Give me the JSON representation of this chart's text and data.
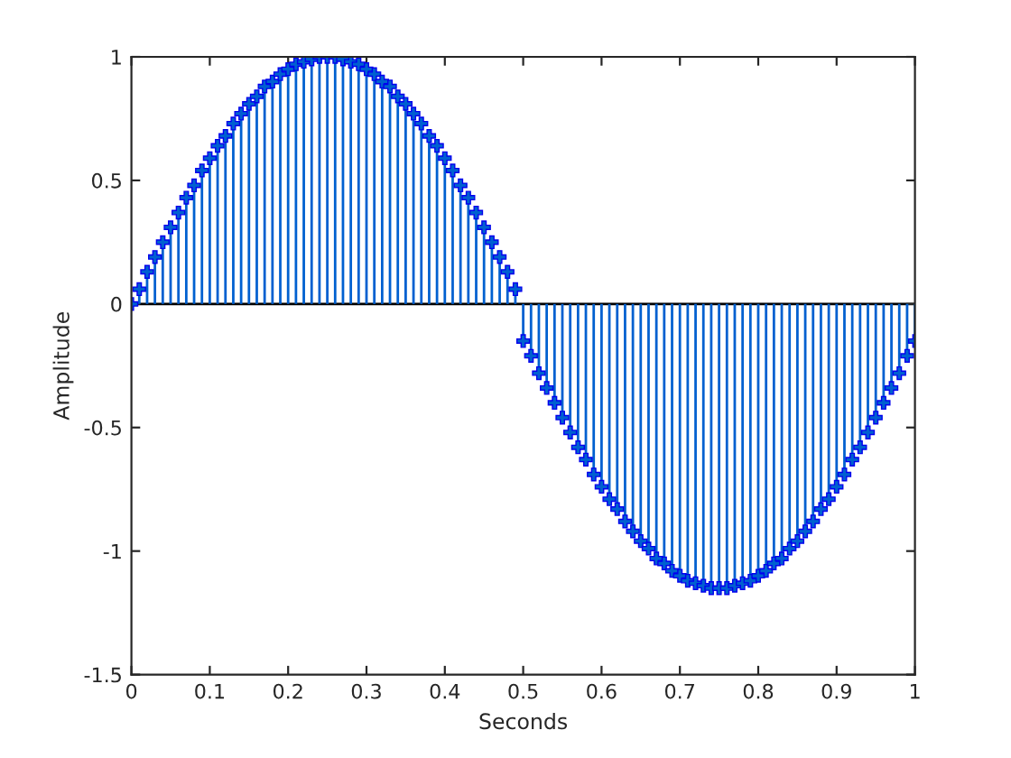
{
  "chart_data": {
    "type": "lollipop",
    "xlabel": "Seconds",
    "ylabel": "Amplitude",
    "x": [
      0,
      0.01,
      0.02,
      0.03,
      0.04,
      0.05,
      0.06,
      0.07,
      0.08,
      0.09,
      0.1,
      0.11,
      0.12,
      0.13,
      0.14,
      0.15,
      0.16,
      0.17,
      0.18,
      0.19,
      0.2,
      0.21,
      0.22,
      0.23,
      0.24,
      0.25,
      0.26,
      0.27,
      0.28,
      0.29,
      0.3,
      0.31,
      0.32,
      0.33,
      0.34,
      0.35,
      0.36,
      0.37,
      0.38,
      0.39,
      0.4,
      0.41,
      0.42,
      0.43,
      0.44,
      0.45,
      0.46,
      0.47,
      0.48,
      0.49,
      0.5,
      0.51,
      0.52,
      0.53,
      0.54,
      0.55,
      0.56,
      0.57,
      0.58,
      0.59,
      0.6,
      0.61,
      0.62,
      0.63,
      0.64,
      0.65,
      0.66,
      0.67,
      0.68,
      0.69,
      0.7,
      0.71,
      0.72,
      0.73,
      0.74,
      0.75,
      0.76,
      0.77,
      0.78,
      0.79,
      0.8,
      0.81,
      0.82,
      0.83,
      0.84,
      0.85,
      0.86,
      0.87,
      0.88,
      0.89,
      0.9,
      0.91,
      0.92,
      0.93,
      0.94,
      0.95,
      0.96,
      0.97,
      0.98,
      0.99,
      1
    ],
    "series": [
      {
        "color": "#0060d0",
        "values": [
          0,
          0.06,
          0.13,
          0.19,
          0.25,
          0.31,
          0.37,
          0.43,
          0.48,
          0.54,
          0.59,
          0.64,
          0.68,
          0.73,
          0.77,
          0.81,
          0.84,
          0.88,
          0.9,
          0.93,
          0.95,
          0.97,
          0.98,
          0.99,
          1,
          1,
          1,
          0.99,
          0.98,
          0.97,
          0.95,
          0.93,
          0.9,
          0.88,
          0.84,
          0.81,
          0.77,
          0.73,
          0.68,
          0.64,
          0.59,
          0.54,
          0.48,
          0.43,
          0.37,
          0.31,
          0.25,
          0.19,
          0.13,
          0.06,
          -0.15,
          -0.21,
          -0.28,
          -0.34,
          -0.4,
          -0.46,
          -0.52,
          -0.58,
          -0.63,
          -0.69,
          -0.74,
          -0.79,
          -0.83,
          -0.88,
          -0.92,
          -0.96,
          -0.99,
          -1.03,
          -1.05,
          -1.08,
          -1.1,
          -1.12,
          -1.13,
          -1.14,
          -1.15,
          -1.15,
          -1.15,
          -1.14,
          -1.13,
          -1.12,
          -1.1,
          -1.08,
          -1.05,
          -1.03,
          -0.99,
          -0.96,
          -0.92,
          -0.88,
          -0.83,
          -0.79,
          -0.74,
          -0.69,
          -0.63,
          -0.58,
          -0.52,
          -0.46,
          -0.4,
          -0.34,
          -0.28,
          -0.21,
          -0.15
        ]
      }
    ],
    "xlim": [
      0,
      1
    ],
    "xticks": [
      0,
      0.1,
      0.2,
      0.3,
      0.4,
      0.5,
      0.6,
      0.7,
      0.8,
      0.9,
      1
    ],
    "ylim": [
      -1.5,
      1
    ],
    "yticks": [
      -1.5,
      -1,
      -0.5,
      0,
      0.5,
      1
    ],
    "ref_lines": [
      {
        "axis": "y",
        "value": 0,
        "color": "#000000",
        "line_style": "solid"
      }
    ],
    "marker": "cross",
    "legend": false
  }
}
